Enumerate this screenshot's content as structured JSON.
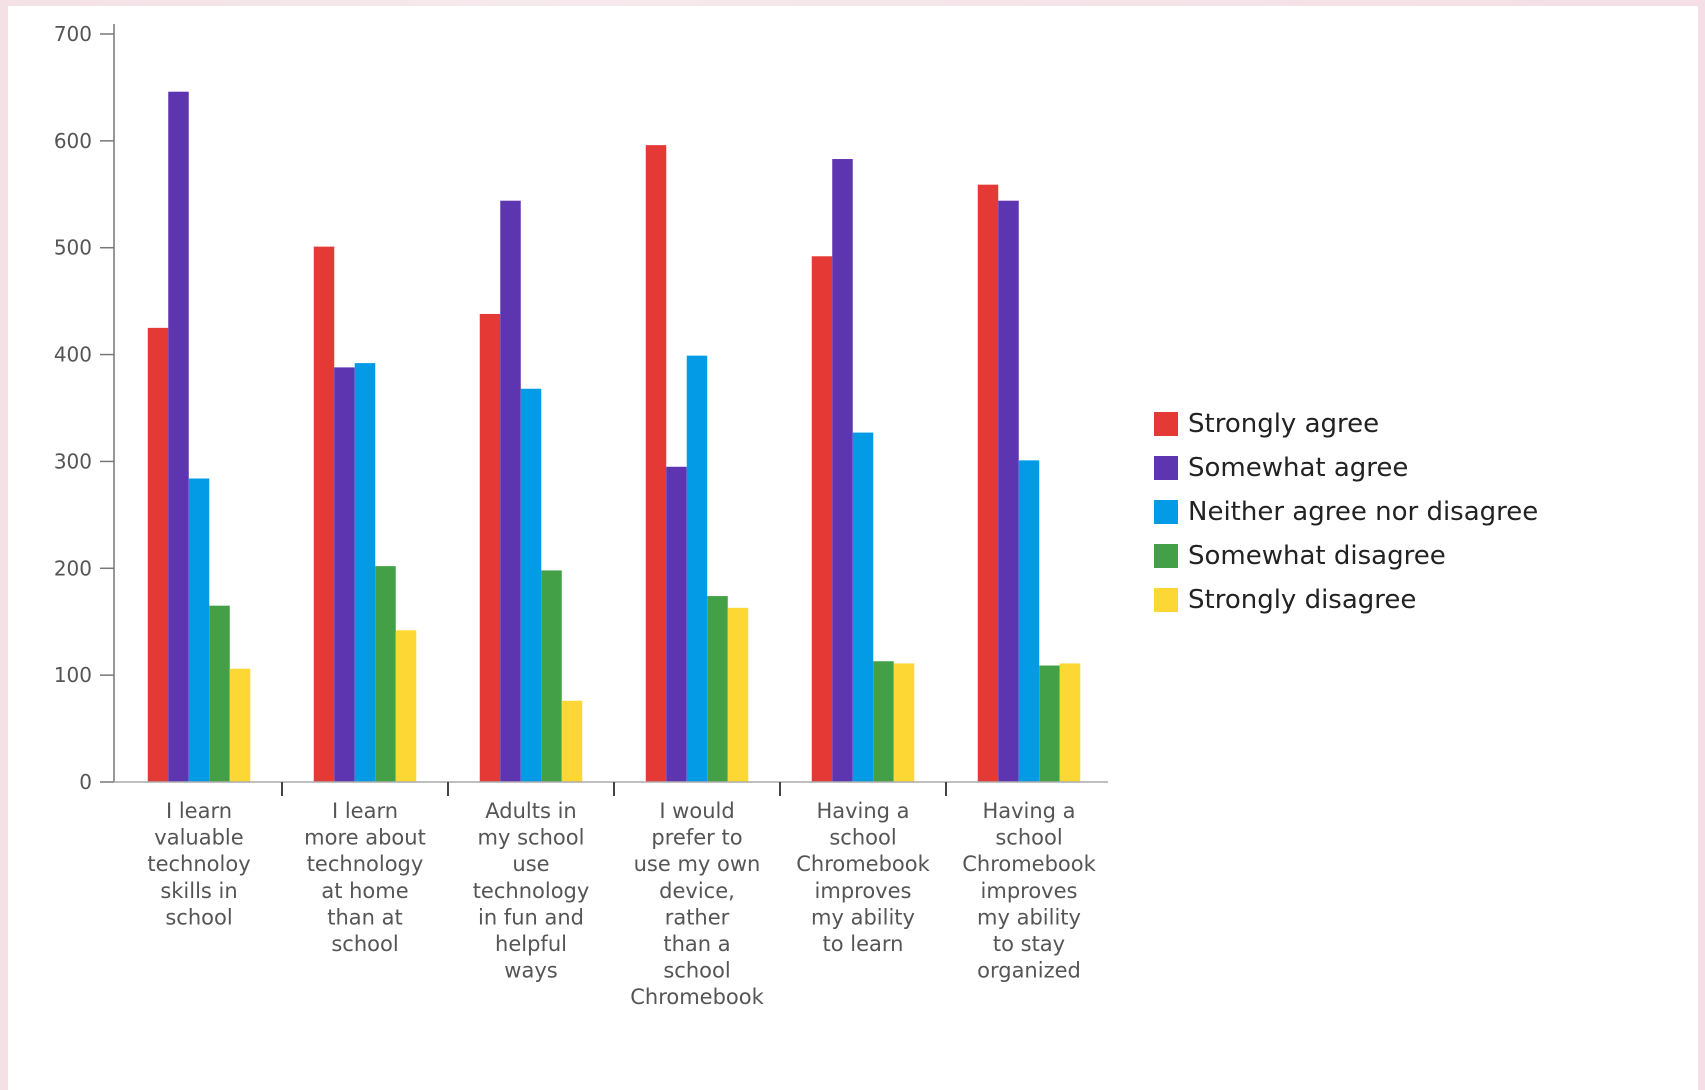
{
  "chart_data": {
    "type": "bar",
    "categories": [
      "I learn valuable technoloy skills in school",
      "I learn more about technology at home than at school",
      "Adults in my school use technology in fun and helpful ways",
      "I would prefer to use my own device, rather than a school Chromebook",
      "Having a school Chromebook improves my ability to learn",
      "Having a school Chromebook improves my ability to stay organized"
    ],
    "category_label_lines": [
      [
        "I learn",
        "valuable",
        "technoloy",
        "skills in",
        "school"
      ],
      [
        "I learn",
        "more about",
        "technology",
        "at home",
        "than at",
        "school"
      ],
      [
        "Adults in",
        "my school",
        "use",
        "technology",
        "in fun and",
        "helpful",
        "ways"
      ],
      [
        "I would",
        "prefer to",
        "use my own",
        "device,",
        "rather",
        "than a",
        "school",
        "Chromebook"
      ],
      [
        "Having a",
        "school",
        "Chromebook",
        "improves",
        "my ability",
        "to learn"
      ],
      [
        "Having a",
        "school",
        "Chromebook",
        "improves",
        "my ability",
        "to stay",
        "organized"
      ]
    ],
    "series": [
      {
        "name": "Strongly agree",
        "color": "#e53935",
        "values": [
          425,
          501,
          438,
          596,
          492,
          559
        ]
      },
      {
        "name": "Somewhat agree",
        "color": "#5e35b1",
        "values": [
          646,
          388,
          544,
          295,
          583,
          544
        ]
      },
      {
        "name": "Neither agree nor disagree",
        "color": "#039be5",
        "values": [
          284,
          392,
          368,
          399,
          327,
          301
        ]
      },
      {
        "name": "Somewhat disagree",
        "color": "#43a047",
        "values": [
          165,
          202,
          198,
          174,
          113,
          109
        ]
      },
      {
        "name": "Strongly disagree",
        "color": "#fdd835",
        "values": [
          106,
          142,
          76,
          163,
          111,
          111
        ]
      }
    ],
    "yticks": [
      "0",
      "100",
      "200",
      "300",
      "400",
      "500",
      "600",
      "700"
    ],
    "ylim": [
      0,
      700
    ],
    "title": "",
    "xlabel": "",
    "ylabel": "",
    "grid": false,
    "legend_position": "right"
  }
}
